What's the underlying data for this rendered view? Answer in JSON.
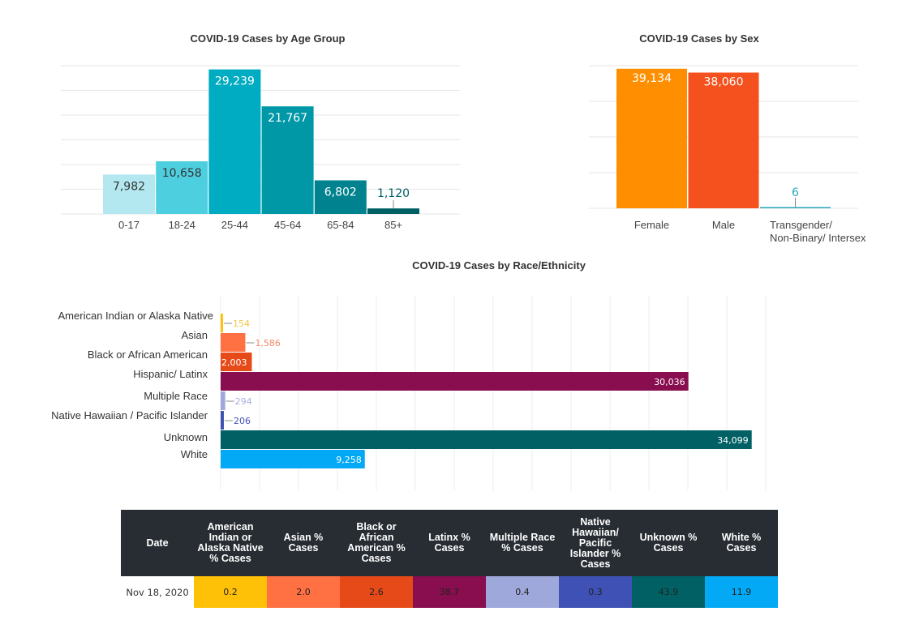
{
  "chart_data": [
    {
      "type": "bar",
      "title": "COVID-19 Cases by Age Group",
      "categories": [
        "0-17",
        "18-24",
        "25-44",
        "45-64",
        "65-84",
        "85+"
      ],
      "values": [
        7982,
        10658,
        29239,
        21767,
        6802,
        1120
      ],
      "value_labels": [
        "7,982",
        "10,658",
        "29,239",
        "21,767",
        "6,802",
        "1,120"
      ],
      "colors": [
        "#b3e8f0",
        "#4ecfe0",
        "#00acc1",
        "#0097a7",
        "#00838f",
        "#006064"
      ],
      "label_colors": [
        "#333333",
        "#333333",
        "#ffffff",
        "#ffffff",
        "#ffffff",
        "#006064"
      ],
      "xlabel": "",
      "ylabel": "",
      "ylim": [
        0,
        30000
      ],
      "y_gridlines": [
        0,
        5000,
        10000,
        15000,
        20000,
        25000,
        30000
      ],
      "grid": true,
      "legend": "none"
    },
    {
      "type": "bar",
      "title": "COVID-19 Cases by Sex",
      "categories": [
        "Female",
        "Male",
        "Transgender/ Non-Binary/ Intersex"
      ],
      "category_lines": [
        [
          "Female"
        ],
        [
          "Male"
        ],
        [
          "Transgender/",
          "Non-Binary/ Intersex"
        ]
      ],
      "values": [
        39134,
        38060,
        6
      ],
      "value_labels": [
        "39,134",
        "38,060",
        "6"
      ],
      "colors": [
        "#ff8f00",
        "#f4511e",
        "#26a9b8"
      ],
      "label_colors": [
        "#ffffff",
        "#ffffff",
        "#26a9b8"
      ],
      "xlabel": "",
      "ylabel": "",
      "ylim": [
        0,
        40000
      ],
      "y_gridlines": [
        0,
        10000,
        20000,
        30000,
        40000
      ],
      "grid": true,
      "legend": "none"
    },
    {
      "type": "bar",
      "orientation": "horizontal",
      "title": "COVID-19 Cases by Race/Ethnicity",
      "categories": [
        "American Indian or Alaska Native",
        "Asian",
        "Black or African American",
        "Hispanic/ Latinx",
        "Multiple Race",
        "Native Hawaiian / Pacific Islander",
        "Unknown",
        "White"
      ],
      "values": [
        154,
        1586,
        2003,
        30036,
        294,
        206,
        34099,
        9258
      ],
      "value_labels": [
        "154",
        "1,586",
        "2,003",
        "30,036",
        "294",
        "206",
        "34,099",
        "9,258"
      ],
      "colors": [
        "#ffc107",
        "#ff7043",
        "#e64a19",
        "#880e4f",
        "#9fa8da",
        "#3f51b5",
        "#006064",
        "#03a9f4"
      ],
      "label_colors": [
        "#f5c542",
        "#f08a6a",
        "#ffffff",
        "#ffffff",
        "#a8b0dd",
        "#3f51b5",
        "#ffffff",
        "#ffffff"
      ],
      "label_inside": [
        false,
        false,
        true,
        true,
        false,
        false,
        true,
        true
      ],
      "xlabel": "",
      "ylabel": "",
      "xlim": [
        0,
        35000
      ],
      "x_gridline_step": 2500,
      "grid": true,
      "legend": "none"
    }
  ],
  "table": {
    "headers": [
      "Date",
      "American Indian or Alaska Native % Cases",
      "Asian % Cases",
      "Black or African American % Cases",
      "Latinx % Cases",
      "Multiple Race % Cases",
      "Native Hawaiian/ Pacific Islander % Cases",
      "Unknown % Cases",
      "White % Cases"
    ],
    "rows": [
      [
        "Nov 18, 2020",
        "0.2",
        "2.0",
        "2.6",
        "38.7",
        "0.4",
        "0.3",
        "43.9",
        "11.9"
      ]
    ],
    "cell_colors": [
      "#ffffff",
      "#ffc107",
      "#ff7043",
      "#e64a19",
      "#880e4f",
      "#9fa8da",
      "#3f51b5",
      "#006064",
      "#03a9f4"
    ]
  }
}
